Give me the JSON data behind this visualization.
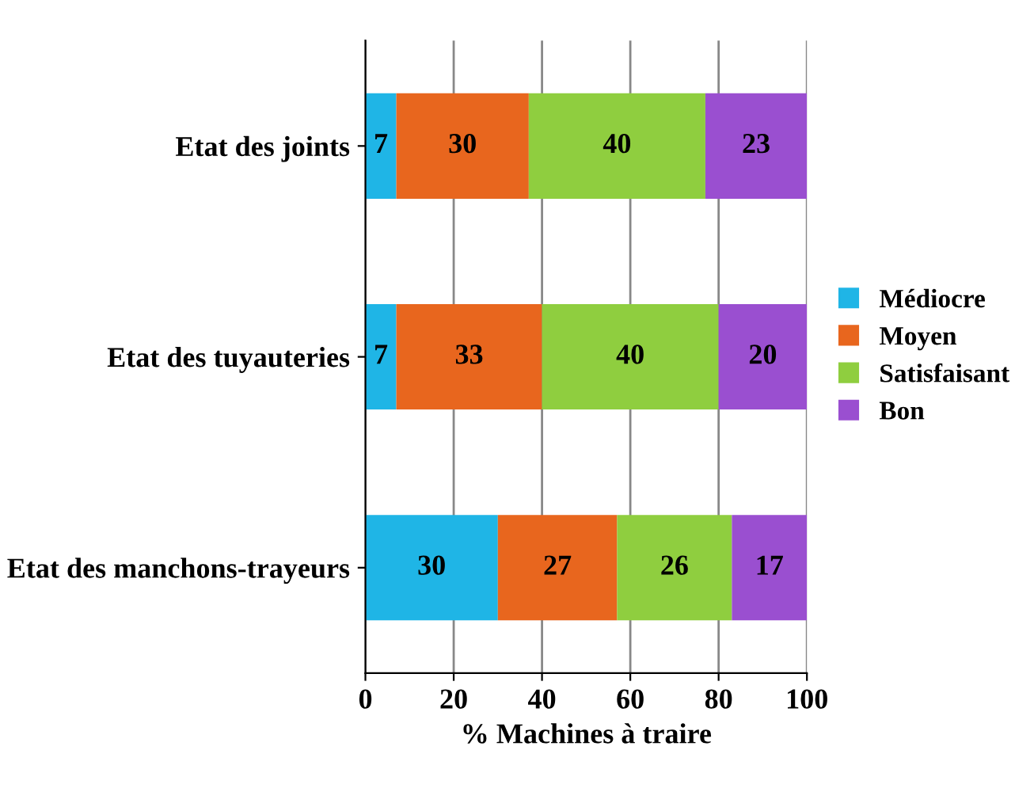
{
  "chart_data": {
    "type": "bar",
    "orientation": "horizontal",
    "stacked": true,
    "xlabel": "% Machines à traire",
    "categories": [
      "Etat des joints",
      "Etat des tuyauteries",
      "Etat des manchons-trayeurs"
    ],
    "series": [
      {
        "name": "Médiocre",
        "color": "#1fb5e6",
        "values": [
          7,
          7,
          30
        ]
      },
      {
        "name": "Moyen",
        "color": "#e8661e",
        "values": [
          30,
          33,
          27
        ]
      },
      {
        "name": "Satisfaisant",
        "color": "#8fce3f",
        "values": [
          40,
          40,
          26
        ]
      },
      {
        "name": "Bon",
        "color": "#9a4fd0",
        "values": [
          23,
          20,
          17
        ]
      }
    ],
    "xlim": [
      0,
      100
    ],
    "xticks": [
      0,
      20,
      40,
      60,
      80,
      100
    ],
    "grid": "x",
    "legend": "right",
    "data_labels": true
  }
}
